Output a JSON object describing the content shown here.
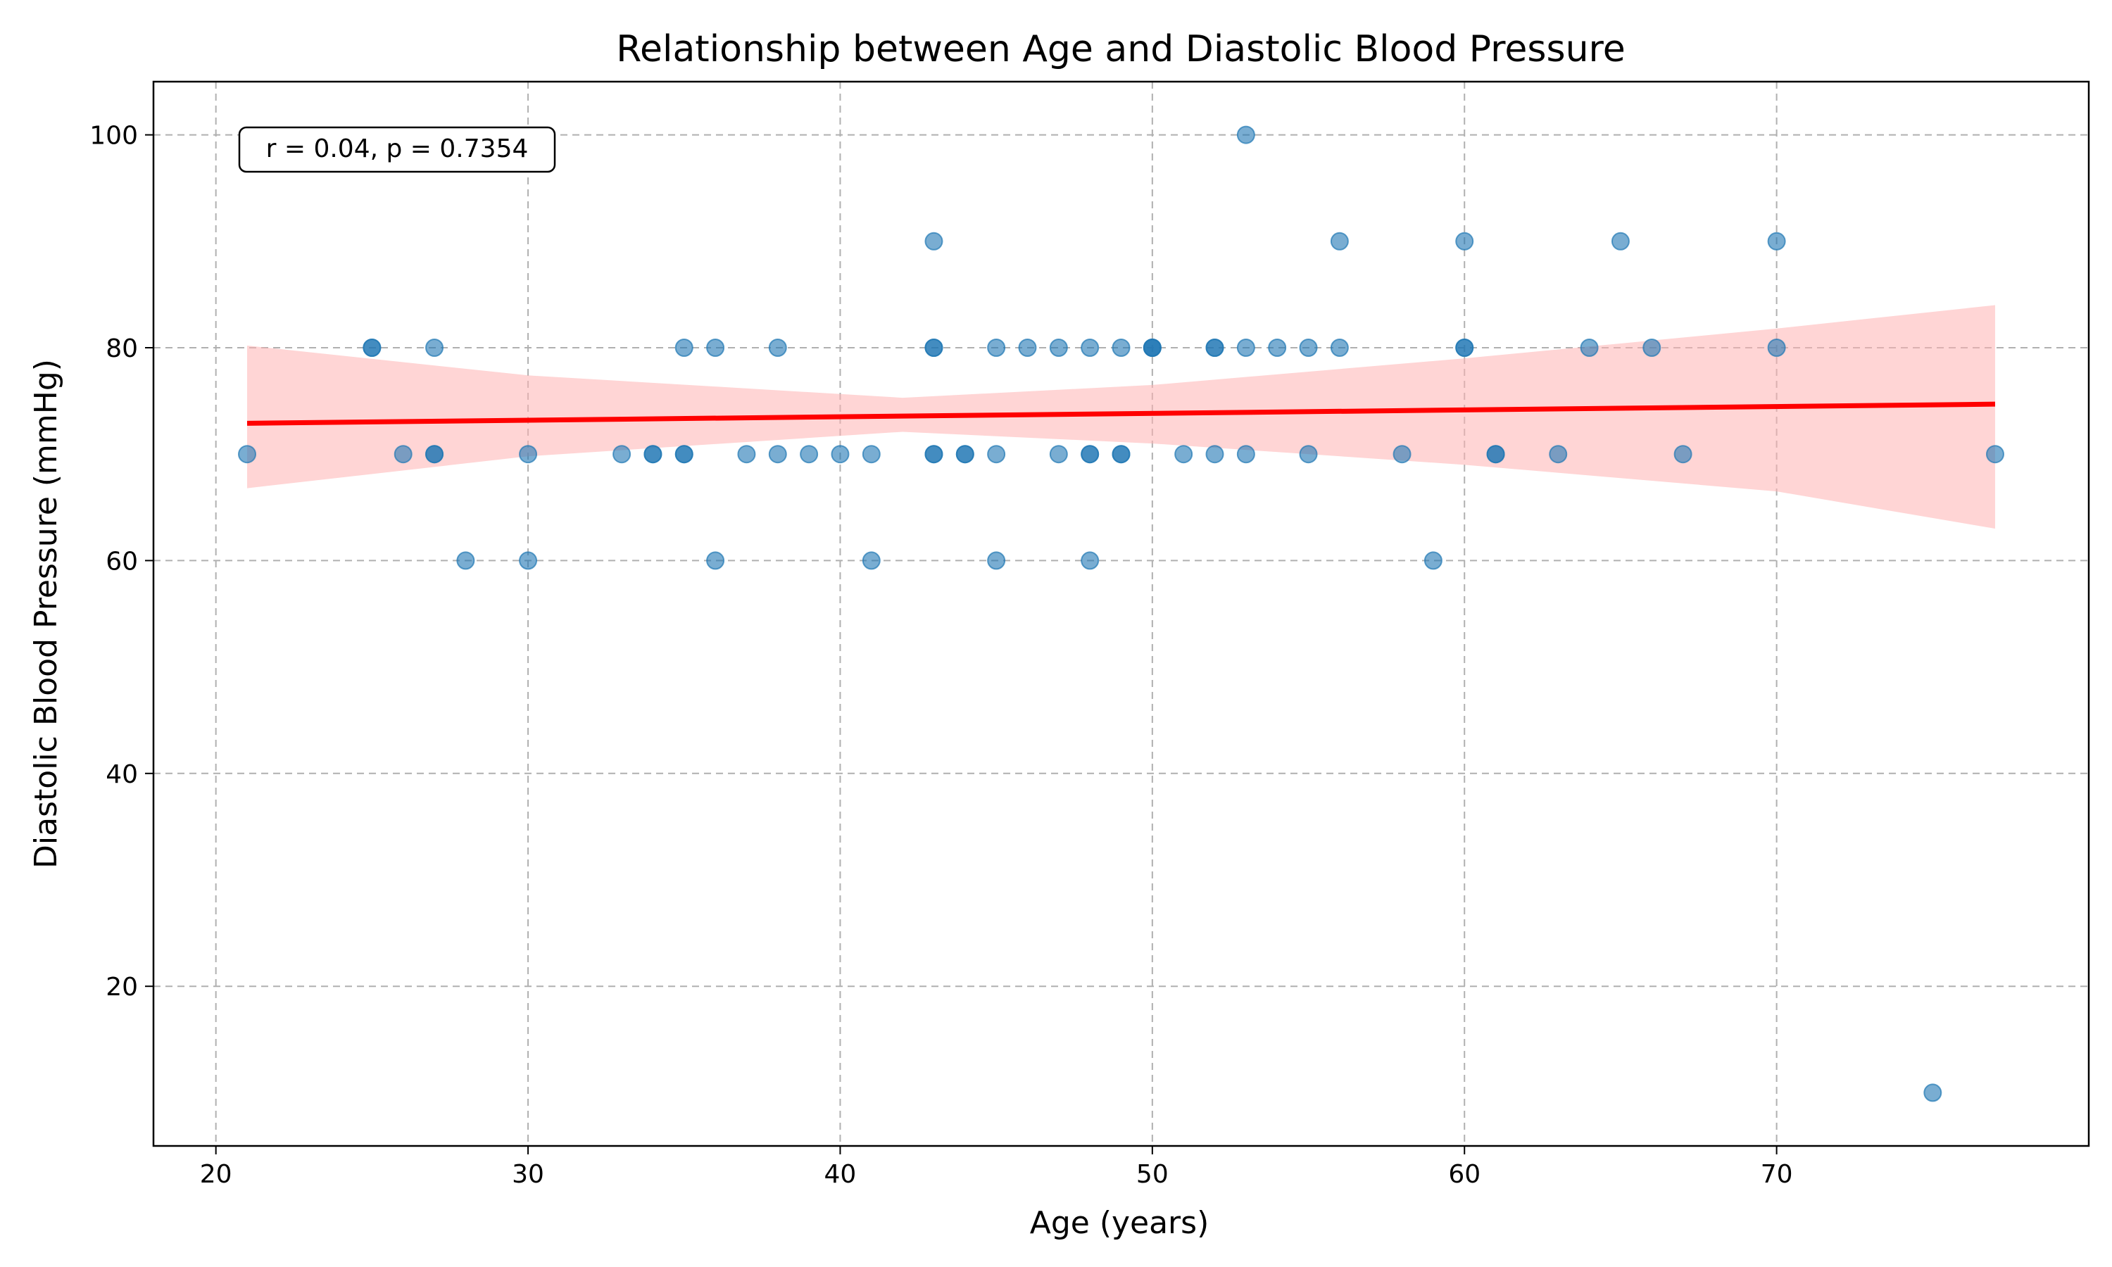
{
  "chart_data": {
    "type": "scatter",
    "title": "Relationship between Age and Diastolic Blood Pressure",
    "xlabel": "Age (years)",
    "ylabel": "Diastolic Blood Pressure (mmHg)",
    "xlim": [
      18,
      80
    ],
    "ylim": [
      5,
      105
    ],
    "xticks": [
      20,
      30,
      40,
      50,
      60,
      70
    ],
    "yticks": [
      20,
      40,
      60,
      80,
      100
    ],
    "grid": true,
    "annotation": "r = 0.04, p = 0.7354",
    "colors": {
      "points": "#1f77b4",
      "regression_line": "#ff0000",
      "confidence_band": "#ffb3b3"
    },
    "points": [
      {
        "x": 21,
        "y": 70
      },
      {
        "x": 25,
        "y": 80
      },
      {
        "x": 25,
        "y": 80
      },
      {
        "x": 26,
        "y": 70
      },
      {
        "x": 27,
        "y": 70
      },
      {
        "x": 27,
        "y": 70
      },
      {
        "x": 27,
        "y": 80
      },
      {
        "x": 28,
        "y": 60
      },
      {
        "x": 30,
        "y": 70
      },
      {
        "x": 30,
        "y": 60
      },
      {
        "x": 33,
        "y": 70
      },
      {
        "x": 34,
        "y": 70
      },
      {
        "x": 34,
        "y": 70
      },
      {
        "x": 35,
        "y": 70
      },
      {
        "x": 35,
        "y": 70
      },
      {
        "x": 35,
        "y": 80
      },
      {
        "x": 36,
        "y": 80
      },
      {
        "x": 36,
        "y": 60
      },
      {
        "x": 37,
        "y": 70
      },
      {
        "x": 38,
        "y": 80
      },
      {
        "x": 38,
        "y": 70
      },
      {
        "x": 39,
        "y": 70
      },
      {
        "x": 40,
        "y": 70
      },
      {
        "x": 41,
        "y": 70
      },
      {
        "x": 41,
        "y": 60
      },
      {
        "x": 43,
        "y": 90
      },
      {
        "x": 43,
        "y": 80
      },
      {
        "x": 43,
        "y": 80
      },
      {
        "x": 43,
        "y": 70
      },
      {
        "x": 43,
        "y": 70
      },
      {
        "x": 44,
        "y": 70
      },
      {
        "x": 44,
        "y": 70
      },
      {
        "x": 45,
        "y": 80
      },
      {
        "x": 45,
        "y": 70
      },
      {
        "x": 45,
        "y": 60
      },
      {
        "x": 46,
        "y": 80
      },
      {
        "x": 47,
        "y": 80
      },
      {
        "x": 47,
        "y": 70
      },
      {
        "x": 48,
        "y": 80
      },
      {
        "x": 48,
        "y": 70
      },
      {
        "x": 48,
        "y": 70
      },
      {
        "x": 48,
        "y": 60
      },
      {
        "x": 49,
        "y": 80
      },
      {
        "x": 49,
        "y": 70
      },
      {
        "x": 49,
        "y": 70
      },
      {
        "x": 50,
        "y": 80
      },
      {
        "x": 50,
        "y": 80
      },
      {
        "x": 50,
        "y": 80
      },
      {
        "x": 51,
        "y": 70
      },
      {
        "x": 52,
        "y": 80
      },
      {
        "x": 52,
        "y": 80
      },
      {
        "x": 52,
        "y": 70
      },
      {
        "x": 53,
        "y": 100
      },
      {
        "x": 53,
        "y": 80
      },
      {
        "x": 53,
        "y": 70
      },
      {
        "x": 54,
        "y": 80
      },
      {
        "x": 55,
        "y": 80
      },
      {
        "x": 55,
        "y": 70
      },
      {
        "x": 56,
        "y": 90
      },
      {
        "x": 56,
        "y": 80
      },
      {
        "x": 58,
        "y": 70
      },
      {
        "x": 59,
        "y": 60
      },
      {
        "x": 60,
        "y": 90
      },
      {
        "x": 60,
        "y": 80
      },
      {
        "x": 60,
        "y": 80
      },
      {
        "x": 61,
        "y": 70
      },
      {
        "x": 61,
        "y": 70
      },
      {
        "x": 63,
        "y": 70
      },
      {
        "x": 64,
        "y": 80
      },
      {
        "x": 65,
        "y": 90
      },
      {
        "x": 66,
        "y": 80
      },
      {
        "x": 67,
        "y": 70
      },
      {
        "x": 70,
        "y": 90
      },
      {
        "x": 70,
        "y": 80
      },
      {
        "x": 75,
        "y": 10
      },
      {
        "x": 77,
        "y": 70
      }
    ],
    "regression_line": {
      "x": [
        21,
        77
      ],
      "y": [
        72.9,
        74.7
      ]
    },
    "confidence_band": {
      "x": [
        21,
        30,
        42,
        50,
        60,
        70,
        77
      ],
      "upper": [
        80.2,
        77.4,
        75.3,
        76.5,
        79.0,
        81.8,
        84.0
      ],
      "lower": [
        66.8,
        69.8,
        72.1,
        71.0,
        69.0,
        66.5,
        63.0
      ]
    }
  }
}
